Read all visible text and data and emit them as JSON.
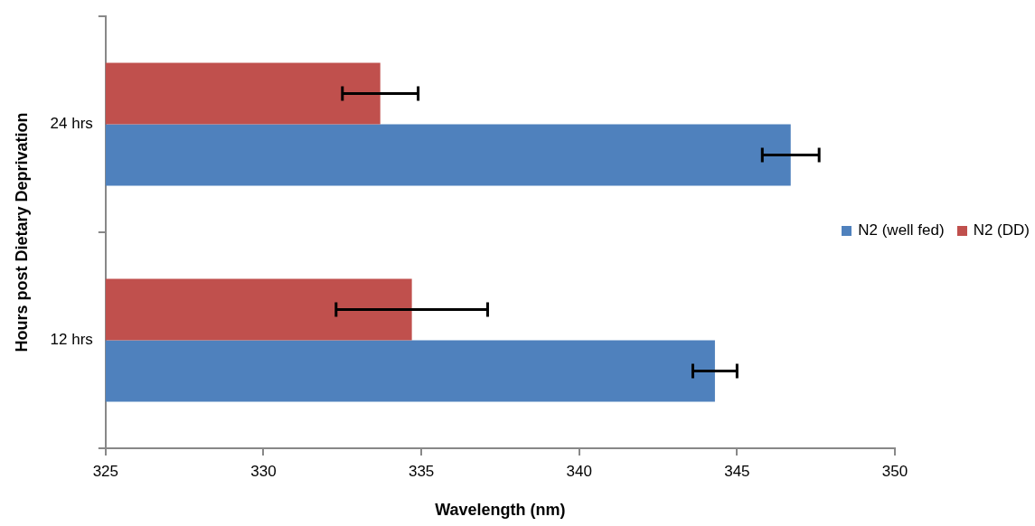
{
  "chart_data": {
    "type": "bar",
    "orientation": "horizontal",
    "xlabel": "Wavelength (nm)",
    "ylabel": "Hours post Dietary Deprivation",
    "categories": [
      "24 hrs",
      "12 hrs"
    ],
    "series": [
      {
        "name": "N2 (well fed)",
        "color": "#4f81bd",
        "values": [
          346.7,
          344.3
        ],
        "errors": [
          0.9,
          0.7
        ]
      },
      {
        "name": "N2 (DD)",
        "color": "#c0504d",
        "values": [
          333.7,
          334.7
        ],
        "errors": [
          1.2,
          2.4
        ]
      }
    ],
    "xlim": [
      325,
      350
    ],
    "xticks": [
      325,
      330,
      335,
      340,
      345,
      350
    ],
    "grid": false,
    "legend": "right"
  }
}
